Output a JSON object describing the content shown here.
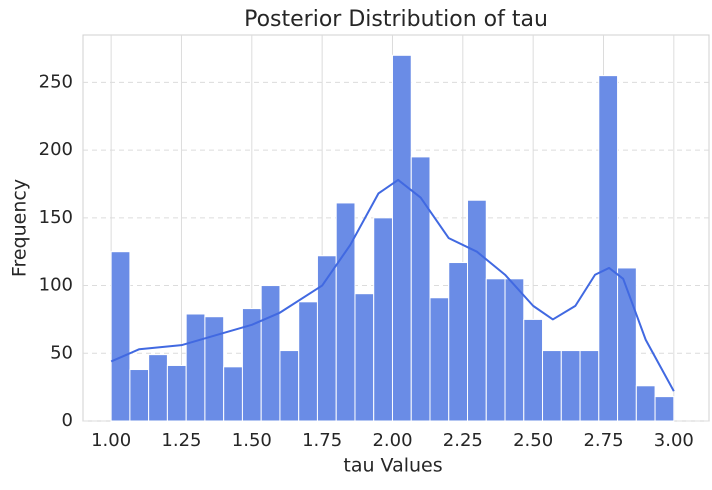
{
  "chart_data": {
    "type": "histogram",
    "title": "Posterior Distribution of tau",
    "x_label": "tau Values",
    "y_label": "Frequency",
    "bins": [
      1.0,
      1.0667,
      1.1333,
      1.2,
      1.2667,
      1.3333,
      1.4,
      1.4667,
      1.5333,
      1.6,
      1.6667,
      1.7333,
      1.8,
      1.8667,
      1.9333,
      2.0,
      2.0667,
      2.1333,
      2.2,
      2.2667,
      2.3333,
      2.4,
      2.4667,
      2.5333,
      2.6,
      2.6667,
      2.7333,
      2.8,
      2.8667,
      2.9333,
      3.0
    ],
    "values": [
      125,
      38,
      49,
      41,
      79,
      77,
      40,
      83,
      100,
      52,
      88,
      122,
      161,
      94,
      150,
      270,
      195,
      91,
      117,
      163,
      105,
      105,
      75,
      52,
      52,
      52,
      255,
      113,
      26,
      18
    ],
    "color": "#6a8ce6",
    "kde": {
      "color": "#4169e1",
      "x": [
        1.0,
        1.1,
        1.25,
        1.4,
        1.5,
        1.6,
        1.75,
        1.85,
        1.95,
        2.02,
        2.1,
        2.2,
        2.3,
        2.4,
        2.5,
        2.57,
        2.65,
        2.72,
        2.77,
        2.82,
        2.9,
        3.0
      ],
      "values": [
        44,
        53,
        56,
        65,
        71,
        80,
        100,
        130,
        168,
        178,
        165,
        135,
        125,
        108,
        85,
        75,
        85,
        108,
        113,
        105,
        60,
        22
      ]
    },
    "xlim": [
      0.9,
      3.125
    ],
    "ylim": [
      0,
      285
    ],
    "xticks": [
      {
        "value": 1,
        "label": "1.00"
      },
      {
        "value": 1.25,
        "label": "1.25"
      },
      {
        "value": 1.5,
        "label": "1.50"
      },
      {
        "value": 1.75,
        "label": "1.75"
      },
      {
        "value": 2,
        "label": "2.00"
      },
      {
        "value": 2.25,
        "label": "2.25"
      },
      {
        "value": 2.5,
        "label": "2.50"
      },
      {
        "value": 2.75,
        "label": "2.75"
      },
      {
        "value": 3,
        "label": "3.00"
      }
    ],
    "yticks": [
      0,
      50,
      100,
      150,
      200,
      250
    ],
    "grid": true
  }
}
